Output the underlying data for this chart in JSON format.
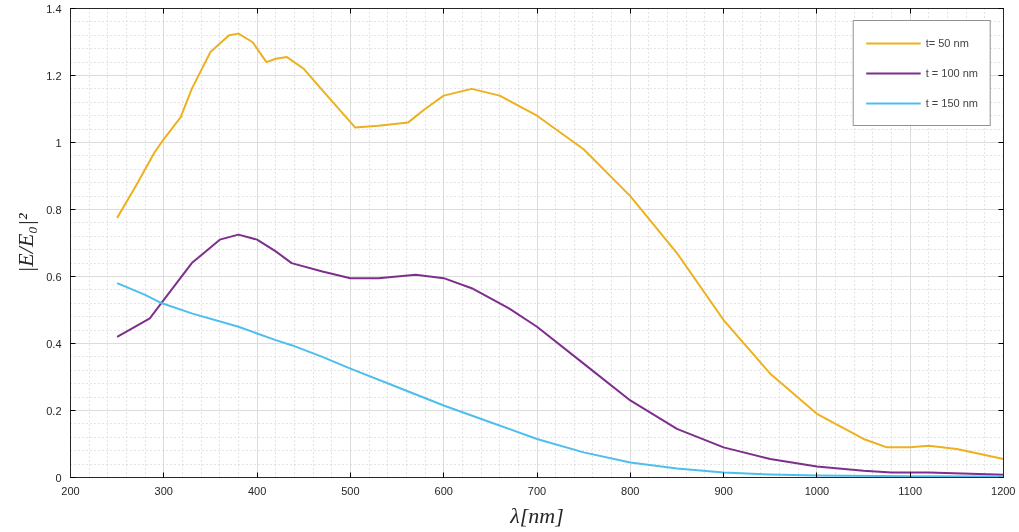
{
  "chart_data": {
    "type": "line",
    "xlabel": "λ[nm]",
    "ylabel": "|E/E₀|²",
    "xlim": [
      200,
      1200
    ],
    "xticks": [
      200,
      300,
      400,
      500,
      600,
      700,
      800,
      900,
      1000,
      1100,
      1200
    ],
    "ylim": [
      0,
      1.4
    ],
    "yticks": [
      {
        "value": 0,
        "label": "0"
      },
      0.2,
      0.4,
      0.6,
      0.8,
      {
        "value": 1,
        "label": "1"
      },
      1.2,
      1.4
    ],
    "grid": true,
    "legend": "top right",
    "line_style": "solid",
    "marker": "none",
    "series": [
      {
        "name": "t= 50 nm",
        "color": "#edb120",
        "x": [
          250,
          270,
          290,
          300,
          318,
          330,
          350,
          370,
          380,
          395,
          410,
          420,
          432,
          450,
          475,
          505,
          530,
          562,
          580,
          600,
          630,
          660,
          700,
          750,
          800,
          850,
          900,
          950,
          1000,
          1050,
          1075,
          1100,
          1120,
          1150,
          1200
        ],
        "values": [
          0.775,
          0.87,
          0.97,
          1.01,
          1.075,
          1.16,
          1.27,
          1.32,
          1.325,
          1.3,
          1.24,
          1.25,
          1.255,
          1.22,
          1.14,
          1.045,
          1.05,
          1.06,
          1.1,
          1.14,
          1.16,
          1.14,
          1.08,
          0.98,
          0.84,
          0.67,
          0.47,
          0.31,
          0.19,
          0.115,
          0.09,
          0.09,
          0.095,
          0.085,
          0.055
        ]
      },
      {
        "name": "t = 100 nm",
        "color": "#7e2f8e",
        "x": [
          250,
          285,
          300,
          330,
          360,
          380,
          400,
          420,
          437,
          470,
          500,
          530,
          570,
          600,
          630,
          670,
          700,
          750,
          800,
          850,
          900,
          950,
          1000,
          1050,
          1080,
          1120,
          1200
        ],
        "values": [
          0.42,
          0.475,
          0.53,
          0.64,
          0.71,
          0.725,
          0.71,
          0.675,
          0.64,
          0.615,
          0.595,
          0.595,
          0.605,
          0.595,
          0.565,
          0.505,
          0.45,
          0.34,
          0.23,
          0.145,
          0.09,
          0.055,
          0.033,
          0.02,
          0.015,
          0.015,
          0.008
        ]
      },
      {
        "name": "t = 150 nm",
        "color": "#4dbeee",
        "x": [
          250,
          280,
          298,
          330,
          380,
          420,
          437,
          470,
          500,
          550,
          600,
          650,
          700,
          750,
          800,
          850,
          900,
          950,
          1000,
          1100,
          1200
        ],
        "values": [
          0.58,
          0.545,
          0.52,
          0.49,
          0.45,
          0.41,
          0.395,
          0.36,
          0.325,
          0.27,
          0.215,
          0.165,
          0.115,
          0.075,
          0.045,
          0.027,
          0.015,
          0.009,
          0.006,
          0.004,
          0.003
        ]
      }
    ]
  }
}
